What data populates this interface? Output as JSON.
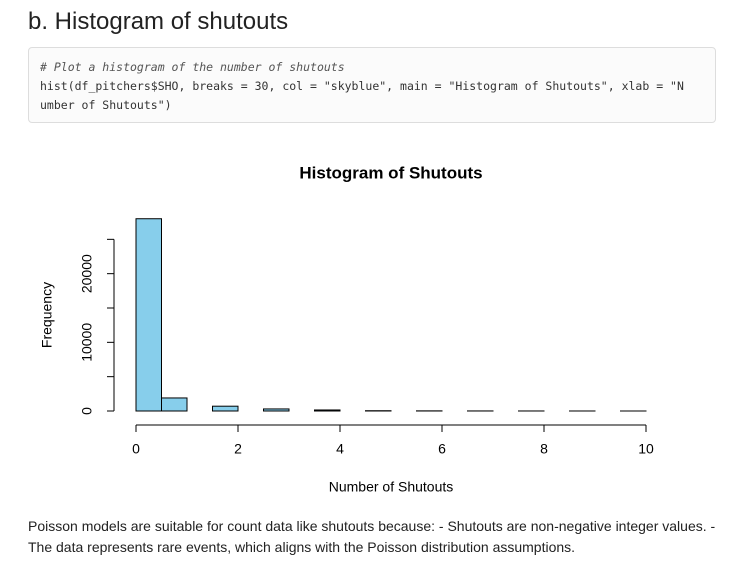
{
  "header": {
    "title": "b. Histogram of shutouts"
  },
  "code": {
    "lines": [
      "# Plot a histogram of the number of shutouts",
      "hist(df_pitchers$SHO, breaks = 30, col = \"skyblue\", main = \"Histogram of Shutouts\", xlab = \"N",
      "umber of Shutouts\")"
    ]
  },
  "chart_data": {
    "type": "histogram",
    "title": "Histogram of Shutouts",
    "x_label": "Number of Shutouts",
    "y_label": "Frequency",
    "bins": [
      0,
      0.5,
      1,
      1.5,
      2,
      2.5,
      3,
      3.5,
      4,
      4.5,
      5,
      5.5,
      6,
      6.5,
      7,
      7.5,
      8,
      8.5,
      9,
      9.5,
      10
    ],
    "values": [
      28000,
      1900,
      0,
      700,
      0,
      300,
      0,
      150,
      0,
      40,
      0,
      20,
      0,
      10,
      0,
      5,
      0,
      3,
      0,
      1
    ],
    "color": "#87ceeb",
    "xlim": [
      0,
      10
    ],
    "xticks": [
      0,
      2,
      4,
      6,
      8,
      10
    ],
    "ylim": [
      0,
      30000
    ],
    "yticks": [
      0,
      10000,
      20000
    ],
    "yminor_ticks": [
      5000,
      15000,
      25000
    ]
  },
  "paragraph": "Poisson models are suitable for count data like shutouts because: - Shutouts are non-negative integer values. - The data represents rare events, which aligns with the Poisson distribution assumptions."
}
